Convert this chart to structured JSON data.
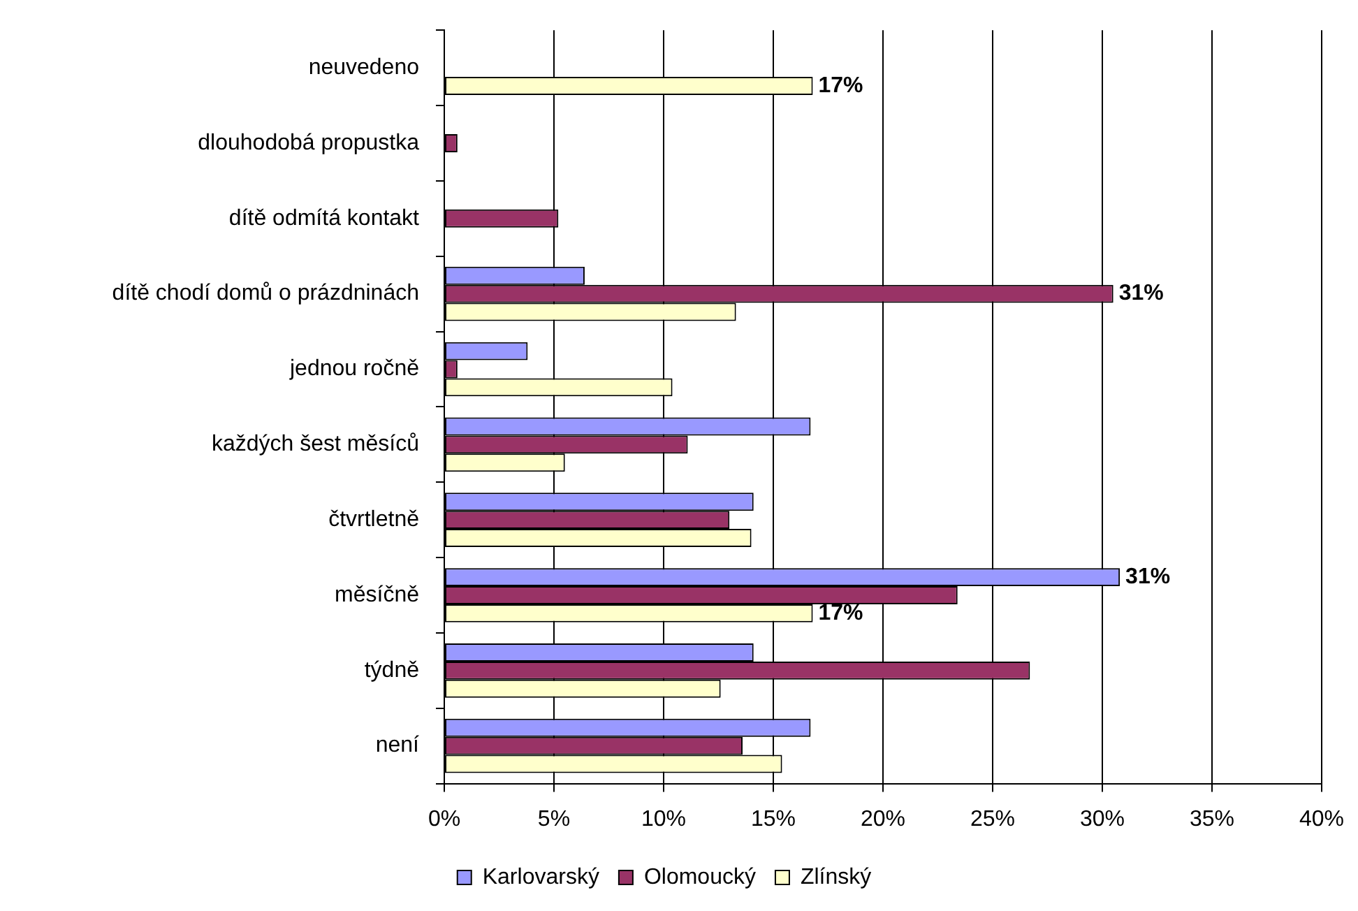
{
  "chart_data": {
    "type": "bar",
    "orientation": "horizontal",
    "categories": [
      "neuvedeno",
      "dlouhodobá propustka",
      "dítě odmítá kontakt",
      "dítě chodí domů o prázdninách",
      "jednou ročně",
      "každých šest měsíců",
      "čtvrtletně",
      "měsíčně",
      "týdně",
      "není"
    ],
    "series": [
      {
        "name": "Karlovarský",
        "color": "#9999ff",
        "values": [
          null,
          null,
          null,
          6.4,
          3.8,
          16.7,
          14.1,
          30.8,
          14.1,
          16.7
        ],
        "value_labels": [
          null,
          null,
          null,
          null,
          null,
          null,
          null,
          "31%",
          null,
          null
        ]
      },
      {
        "name": "Olomoucký",
        "color": "#993366",
        "values": [
          null,
          0.6,
          5.2,
          30.5,
          0.6,
          11.1,
          13.0,
          23.4,
          26.7,
          13.6
        ],
        "value_labels": [
          null,
          null,
          null,
          "31%",
          null,
          null,
          null,
          null,
          null,
          null
        ]
      },
      {
        "name": "Zlínský",
        "color": "#ffffcc",
        "values": [
          16.8,
          null,
          null,
          13.3,
          10.4,
          5.5,
          14.0,
          16.8,
          12.6,
          15.4
        ],
        "value_labels": [
          "17%",
          null,
          null,
          null,
          null,
          null,
          null,
          "17%",
          null,
          null
        ]
      }
    ],
    "xlim": [
      0,
      40
    ],
    "xticks": [
      {
        "value": 0,
        "label": "0%"
      },
      {
        "value": 5,
        "label": "5%"
      },
      {
        "value": 10,
        "label": "10%"
      },
      {
        "value": 15,
        "label": "15%"
      },
      {
        "value": 20,
        "label": "20%"
      },
      {
        "value": 25,
        "label": "25%"
      },
      {
        "value": 30,
        "label": "30%"
      },
      {
        "value": 35,
        "label": "35%"
      },
      {
        "value": 40,
        "label": "40%"
      }
    ],
    "grid": "x",
    "legend": "bottom"
  }
}
